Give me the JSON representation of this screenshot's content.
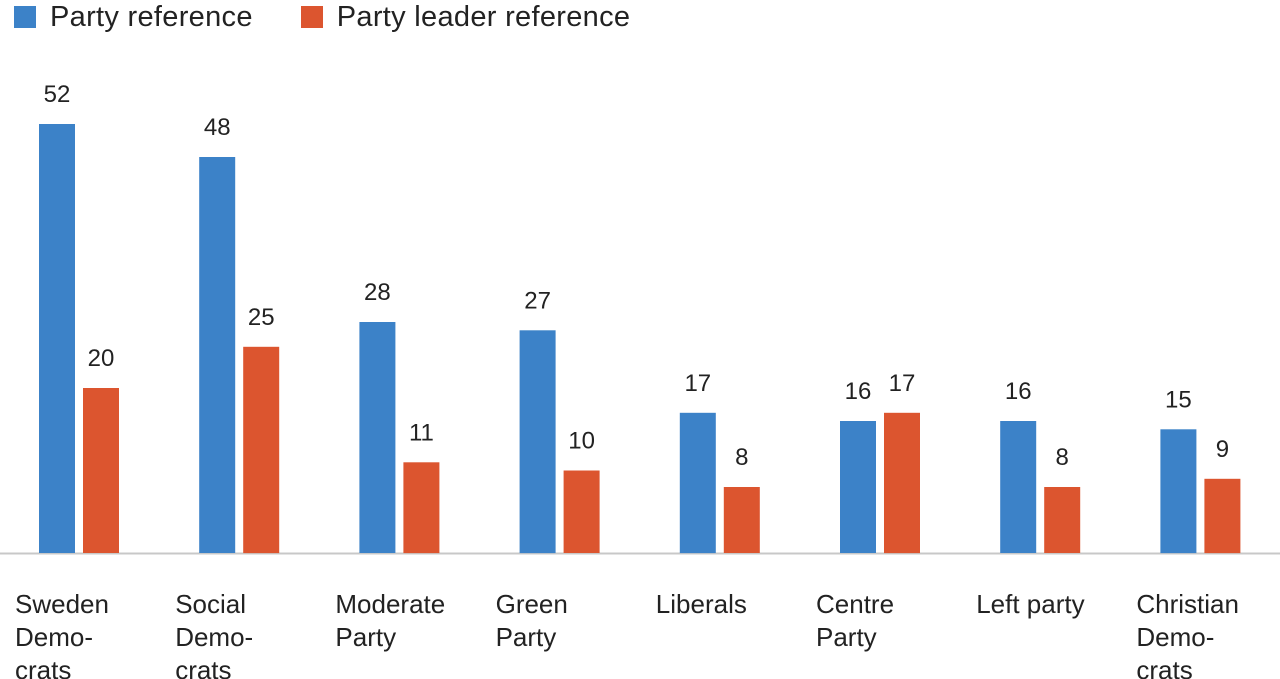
{
  "chart_data": {
    "type": "bar",
    "categories": [
      [
        "Sweden",
        "Demo-",
        "crats"
      ],
      [
        "Social",
        "Demo-",
        "crats"
      ],
      [
        "Moderate",
        "Party"
      ],
      [
        "Green",
        "Party"
      ],
      [
        "Liberals"
      ],
      [
        "Centre",
        "Party"
      ],
      [
        "Left party"
      ],
      [
        "Christian",
        "Demo-",
        "crats"
      ]
    ],
    "series": [
      {
        "name": "Party reference",
        "color": "#3c82c8",
        "values": [
          52,
          48,
          28,
          27,
          17,
          16,
          16,
          15
        ]
      },
      {
        "name": "Party leader reference",
        "color": "#dc552f",
        "values": [
          20,
          25,
          11,
          10,
          8,
          17,
          8,
          9
        ]
      }
    ],
    "ylim": [
      0,
      60
    ],
    "grid": false,
    "legend_position": "top-left",
    "data_labels": true
  }
}
